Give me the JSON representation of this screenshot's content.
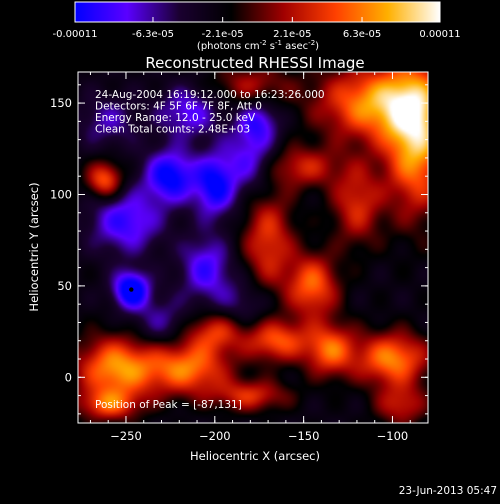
{
  "colorbar": {
    "tick_labels": [
      "-0.00011",
      "-6.3e-05",
      "-2.1e-05",
      "2.1e-05",
      "6.3e-05",
      "0.00011"
    ],
    "tick_values": [
      -0.00011,
      -6.3e-05,
      -2.1e-05,
      2.1e-05,
      6.3e-05,
      0.00011
    ],
    "range": [
      -0.00011,
      0.00011
    ],
    "unit_prefix": "(photons cm",
    "unit_exp1": "-2",
    "unit_mid": " s",
    "unit_exp2": "-1",
    "unit_mid2": " asec",
    "unit_exp3": "-2",
    "unit_suffix": ")",
    "colors": [
      "#0000ff",
      "#5a00ff",
      "#1a0030",
      "#000000",
      "#a00000",
      "#ff4000",
      "#ffb000",
      "#ffffff"
    ]
  },
  "chart_data": {
    "type": "heatmap",
    "title": "Reconstructed RHESSI Image",
    "xlabel": "Heliocentric X (arcsec)",
    "ylabel": "Heliocentric Y (arcsec)",
    "xlim": [
      -277,
      -80
    ],
    "ylim": [
      -25,
      167
    ],
    "x_ticks": [
      -250,
      -200,
      -150,
      -100
    ],
    "y_ticks": [
      0,
      50,
      100,
      150
    ],
    "info_lines": [
      "24-Aug-2004 16:19:12.000 to 16:23:26.000",
      "Detectors: 4F 5F 6F 7F 8F, Att 0",
      "Energy Range: 12.0 - 25.0 keV",
      "Clean    Total counts: 2.48E+03"
    ],
    "peak_label": "Position of Peak = [-87,131]",
    "peak": [
      -87,
      131
    ],
    "min_marker": [
      -247,
      48
    ],
    "features": [
      {
        "x": -87,
        "y": 131,
        "amp": 1.0,
        "sx": 12,
        "sy": 28
      },
      {
        "x": -110,
        "y": 150,
        "amp": 0.9,
        "sx": 22,
        "sy": 14
      },
      {
        "x": -100,
        "y": 10,
        "amp": 0.85,
        "sx": 14,
        "sy": 10
      },
      {
        "x": -135,
        "y": 15,
        "amp": 0.75,
        "sx": 10,
        "sy": 10
      },
      {
        "x": -165,
        "y": 20,
        "amp": 0.7,
        "sx": 12,
        "sy": 8
      },
      {
        "x": -145,
        "y": 50,
        "amp": 0.75,
        "sx": 10,
        "sy": 12
      },
      {
        "x": -170,
        "y": 75,
        "amp": 0.6,
        "sx": 10,
        "sy": 20
      },
      {
        "x": -200,
        "y": 25,
        "amp": 0.6,
        "sx": 12,
        "sy": 8
      },
      {
        "x": -215,
        "y": 5,
        "amp": 0.8,
        "sx": 16,
        "sy": 10
      },
      {
        "x": -255,
        "y": 5,
        "amp": 0.9,
        "sx": 16,
        "sy": 12
      },
      {
        "x": -260,
        "y": -15,
        "amp": 0.6,
        "sx": 12,
        "sy": 6
      },
      {
        "x": -180,
        "y": -10,
        "amp": 0.55,
        "sx": 15,
        "sy": 6
      },
      {
        "x": -95,
        "y": -15,
        "amp": 0.5,
        "sx": 10,
        "sy": 8
      },
      {
        "x": -262,
        "y": 108,
        "amp": 0.75,
        "sx": 7,
        "sy": 7
      },
      {
        "x": -150,
        "y": 115,
        "amp": 0.5,
        "sx": 14,
        "sy": 8
      },
      {
        "x": -120,
        "y": 95,
        "amp": 0.55,
        "sx": 10,
        "sy": 16
      },
      {
        "x": -180,
        "y": 160,
        "amp": 0.4,
        "sx": 16,
        "sy": 8
      },
      {
        "x": -247,
        "y": 48,
        "amp": -0.95,
        "sx": 7,
        "sy": 7
      },
      {
        "x": -225,
        "y": 110,
        "amp": -0.8,
        "sx": 10,
        "sy": 10
      },
      {
        "x": -200,
        "y": 105,
        "amp": -0.75,
        "sx": 8,
        "sy": 12
      },
      {
        "x": -250,
        "y": 85,
        "amp": -0.6,
        "sx": 14,
        "sy": 12
      },
      {
        "x": -205,
        "y": 60,
        "amp": -0.55,
        "sx": 10,
        "sy": 12
      },
      {
        "x": -180,
        "y": 120,
        "amp": -0.5,
        "sx": 10,
        "sy": 14
      },
      {
        "x": -175,
        "y": 140,
        "amp": -0.45,
        "sx": 8,
        "sy": 8
      },
      {
        "x": -215,
        "y": 145,
        "amp": -0.5,
        "sx": 12,
        "sy": 10
      },
      {
        "x": -260,
        "y": 140,
        "amp": -0.35,
        "sx": 12,
        "sy": 10
      },
      {
        "x": -230,
        "y": 30,
        "amp": -0.35,
        "sx": 12,
        "sy": 10
      },
      {
        "x": -185,
        "y": 40,
        "amp": -0.3,
        "sx": 12,
        "sy": 10
      }
    ]
  },
  "footer": {
    "date": "23-Jun-2013 05:47"
  }
}
